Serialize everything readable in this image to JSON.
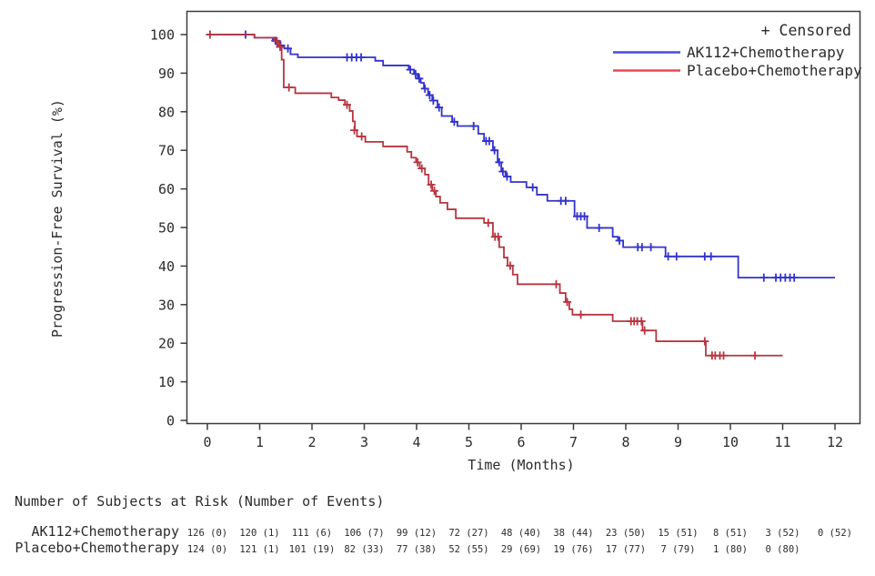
{
  "chart_data": {
    "type": "line",
    "subtype": "kaplan-meier-step-survival",
    "title": "",
    "xlabel": "Time (Months)",
    "ylabel": "Progression-Free Survival (%)",
    "xlim": [
      0,
      12
    ],
    "ylim": [
      0,
      100
    ],
    "xticks": [
      0,
      1,
      2,
      3,
      4,
      5,
      6,
      7,
      8,
      9,
      10,
      11,
      12
    ],
    "yticks": [
      0,
      10,
      20,
      30,
      40,
      50,
      60,
      70,
      80,
      90,
      100
    ],
    "grid": "off",
    "legend": {
      "position": "top-right-inside",
      "censored_label": "+ Censored"
    },
    "series": [
      {
        "name": "AK112+Chemotherapy",
        "line_color": "#3232cc",
        "legend_line_color": "#4a4ae0",
        "text_color": "#4545d6",
        "steps": [
          [
            0,
            100
          ],
          [
            0.9,
            99.2
          ],
          [
            1.25,
            98.4
          ],
          [
            1.38,
            97.2
          ],
          [
            1.47,
            96.4
          ],
          [
            1.59,
            94.9
          ],
          [
            1.73,
            94.1
          ],
          [
            3.21,
            93.2
          ],
          [
            3.36,
            92.0
          ],
          [
            3.85,
            90.9
          ],
          [
            3.95,
            89.8
          ],
          [
            4.02,
            88.6
          ],
          [
            4.08,
            87.5
          ],
          [
            4.14,
            86.0
          ],
          [
            4.22,
            84.3
          ],
          [
            4.3,
            82.9
          ],
          [
            4.4,
            81.1
          ],
          [
            4.48,
            78.9
          ],
          [
            4.68,
            77.4
          ],
          [
            4.78,
            76.3
          ],
          [
            5.18,
            74.3
          ],
          [
            5.29,
            72.4
          ],
          [
            5.46,
            70.0
          ],
          [
            5.55,
            66.9
          ],
          [
            5.62,
            64.5
          ],
          [
            5.7,
            63.2
          ],
          [
            5.8,
            61.8
          ],
          [
            6.1,
            60.4
          ],
          [
            6.3,
            58.5
          ],
          [
            6.5,
            56.9
          ],
          [
            7.02,
            52.9
          ],
          [
            7.26,
            49.9
          ],
          [
            7.75,
            47.6
          ],
          [
            7.85,
            46.6
          ],
          [
            7.95,
            44.9
          ],
          [
            8.76,
            42.5
          ],
          [
            10.15,
            37.0
          ],
          [
            12,
            37.0
          ]
        ],
        "censors": [
          [
            0.73,
            100
          ],
          [
            1.3,
            98.4
          ],
          [
            1.4,
            97.2
          ],
          [
            1.54,
            96.4
          ],
          [
            2.67,
            94.1
          ],
          [
            2.76,
            94.1
          ],
          [
            2.85,
            94.1
          ],
          [
            2.94,
            94.1
          ],
          [
            3.88,
            90.9
          ],
          [
            3.98,
            89.8
          ],
          [
            4.05,
            88.6
          ],
          [
            4.16,
            86.0
          ],
          [
            4.25,
            84.3
          ],
          [
            4.32,
            82.9
          ],
          [
            4.43,
            81.1
          ],
          [
            4.72,
            77.4
          ],
          [
            5.09,
            76.3
          ],
          [
            5.33,
            72.4
          ],
          [
            5.39,
            72.4
          ],
          [
            5.49,
            70.0
          ],
          [
            5.58,
            66.9
          ],
          [
            5.65,
            64.5
          ],
          [
            5.73,
            63.2
          ],
          [
            6.22,
            60.4
          ],
          [
            6.76,
            56.9
          ],
          [
            6.85,
            56.9
          ],
          [
            7.07,
            52.9
          ],
          [
            7.14,
            52.9
          ],
          [
            7.21,
            52.9
          ],
          [
            7.49,
            49.9
          ],
          [
            7.88,
            46.6
          ],
          [
            8.23,
            44.9
          ],
          [
            8.31,
            44.9
          ],
          [
            8.48,
            44.9
          ],
          [
            8.81,
            42.5
          ],
          [
            8.97,
            42.5
          ],
          [
            9.51,
            42.5
          ],
          [
            9.63,
            42.5
          ],
          [
            10.64,
            37
          ],
          [
            10.87,
            37
          ],
          [
            10.96,
            37
          ],
          [
            11.05,
            37
          ],
          [
            11.14,
            37
          ],
          [
            11.22,
            37
          ]
        ]
      },
      {
        "name": "Placebo+Chemotherapy",
        "line_color": "#b8353f",
        "legend_line_color": "#ea4850",
        "text_color": "#d04a52",
        "steps": [
          [
            0,
            100
          ],
          [
            0.9,
            99.2
          ],
          [
            1.28,
            98.3
          ],
          [
            1.36,
            96.8
          ],
          [
            1.42,
            93.5
          ],
          [
            1.46,
            86.3
          ],
          [
            1.68,
            84.8
          ],
          [
            2.37,
            83.7
          ],
          [
            2.51,
            83.0
          ],
          [
            2.63,
            81.8
          ],
          [
            2.72,
            80.2
          ],
          [
            2.78,
            77.5
          ],
          [
            2.82,
            75.2
          ],
          [
            2.86,
            73.6
          ],
          [
            3.02,
            72.2
          ],
          [
            3.36,
            71.0
          ],
          [
            3.82,
            69.6
          ],
          [
            3.9,
            68.1
          ],
          [
            3.99,
            66.9
          ],
          [
            4.06,
            65.3
          ],
          [
            4.16,
            63.7
          ],
          [
            4.23,
            61.1
          ],
          [
            4.3,
            59.5
          ],
          [
            4.37,
            58.0
          ],
          [
            4.45,
            56.4
          ],
          [
            4.59,
            54.7
          ],
          [
            4.75,
            52.4
          ],
          [
            5.29,
            51.2
          ],
          [
            5.46,
            47.6
          ],
          [
            5.58,
            44.9
          ],
          [
            5.67,
            42.2
          ],
          [
            5.74,
            40.1
          ],
          [
            5.84,
            37.8
          ],
          [
            5.93,
            35.3
          ],
          [
            6.74,
            33.0
          ],
          [
            6.85,
            30.7
          ],
          [
            6.92,
            28.8
          ],
          [
            6.98,
            27.4
          ],
          [
            7.75,
            25.7
          ],
          [
            8.32,
            23.3
          ],
          [
            8.58,
            20.5
          ],
          [
            9.53,
            16.8
          ],
          [
            11.0,
            16.8
          ]
        ],
        "censors": [
          [
            0.05,
            100
          ],
          [
            1.33,
            98.3
          ],
          [
            1.39,
            96.8
          ],
          [
            1.56,
            86.3
          ],
          [
            2.67,
            81.8
          ],
          [
            2.81,
            75.2
          ],
          [
            2.95,
            73.6
          ],
          [
            4.02,
            66.9
          ],
          [
            4.1,
            65.3
          ],
          [
            4.28,
            61.1
          ],
          [
            4.34,
            59.5
          ],
          [
            5.37,
            51.2
          ],
          [
            5.5,
            47.6
          ],
          [
            5.56,
            47.6
          ],
          [
            5.79,
            40.1
          ],
          [
            6.67,
            35.3
          ],
          [
            6.88,
            30.7
          ],
          [
            7.14,
            27.4
          ],
          [
            8.1,
            25.7
          ],
          [
            8.16,
            25.7
          ],
          [
            8.22,
            25.7
          ],
          [
            8.3,
            25.7
          ],
          [
            8.36,
            23.3
          ],
          [
            9.51,
            20.5
          ],
          [
            9.65,
            16.8
          ],
          [
            9.71,
            16.8
          ],
          [
            9.8,
            16.8
          ],
          [
            9.87,
            16.8
          ],
          [
            10.47,
            16.8
          ]
        ]
      }
    ],
    "risk_table": {
      "title": "Number of Subjects at Risk (Number of Events)",
      "times": [
        0,
        1,
        2,
        3,
        4,
        5,
        6,
        7,
        8,
        9,
        10,
        11,
        12
      ],
      "rows": [
        {
          "name": "AK112+Chemotherapy",
          "values": [
            "126 (0)",
            "120 (1)",
            "111 (6)",
            "106 (7)",
            "99 (12)",
            "72 (27)",
            "48 (40)",
            "38 (44)",
            "23 (50)",
            "15 (51)",
            "8 (51)",
            "3 (52)",
            "0 (52)"
          ]
        },
        {
          "name": "Placebo+Chemotherapy",
          "values": [
            "124 (0)",
            "121 (1)",
            "101 (19)",
            "82 (33)",
            "77 (38)",
            "52 (55)",
            "29 (69)",
            "19 (76)",
            "17 (77)",
            "7 (79)",
            "1 (80)",
            "0 (80)"
          ]
        }
      ]
    },
    "frame_color": "#3c3c3c"
  }
}
